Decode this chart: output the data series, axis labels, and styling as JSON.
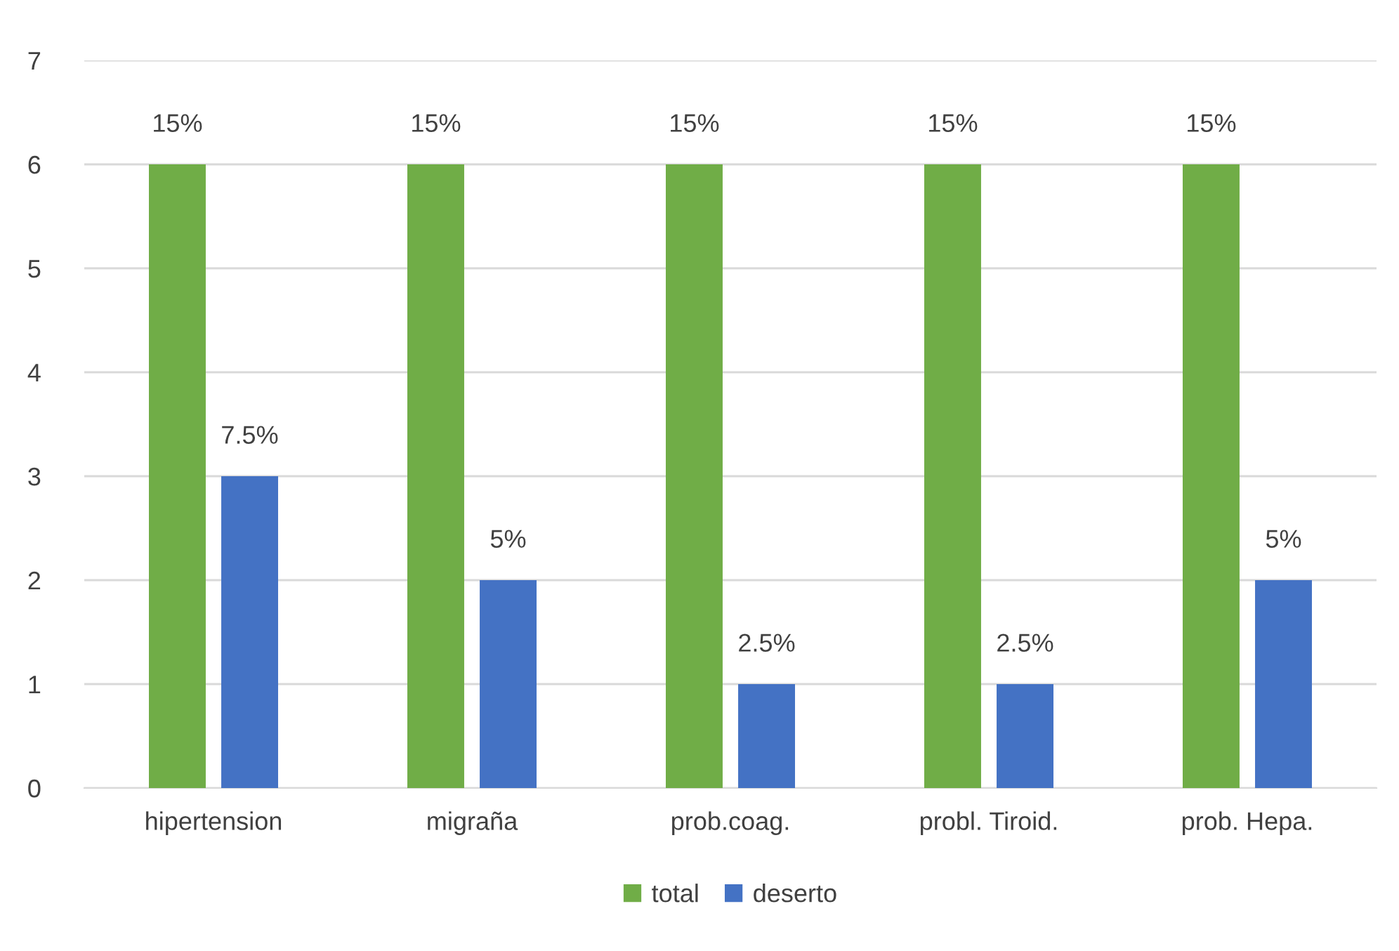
{
  "chart_data": {
    "type": "bar",
    "categories": [
      "hipertension",
      "migraña",
      "prob.coag.",
      "probl. Tiroid.",
      "prob. Hepa."
    ],
    "series": [
      {
        "name": "total",
        "color": "#70ad47",
        "values": [
          6,
          6,
          6,
          6,
          6
        ]
      },
      {
        "name": "deserto",
        "color": "#4472c4",
        "values": [
          3,
          2,
          1,
          1,
          2
        ]
      }
    ],
    "annotations": [
      "15%",
      "15%",
      "15%",
      "15%",
      "15%",
      "7.5%",
      "5%",
      "2.5%",
      "2.5%",
      "5%"
    ],
    "ylim": [
      0,
      7
    ],
    "yticks": [
      0,
      1,
      2,
      3,
      4,
      5,
      6,
      7
    ],
    "grid": "y",
    "legend": "bottom"
  }
}
